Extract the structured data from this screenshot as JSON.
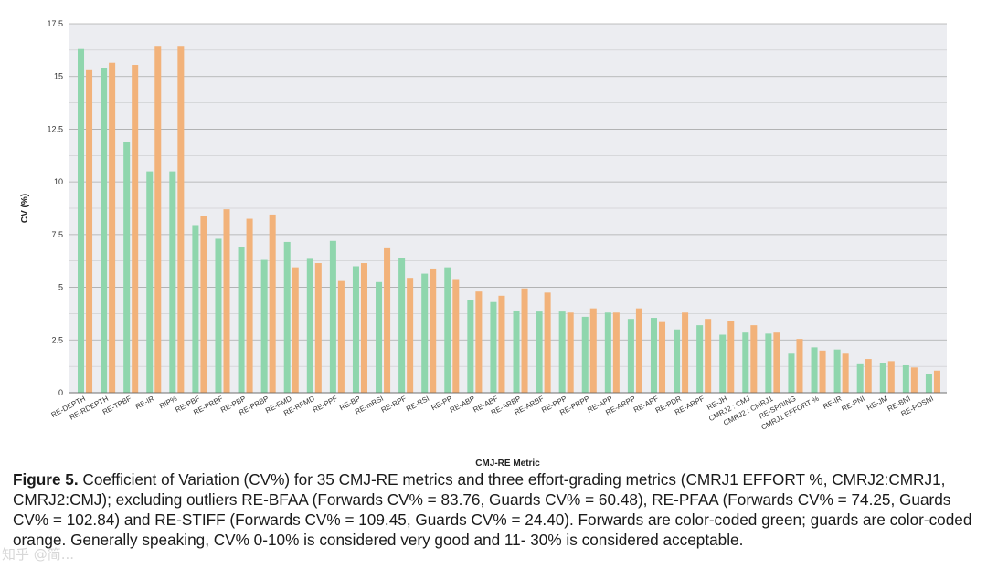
{
  "chart_data": {
    "type": "bar",
    "xlabel": "CMJ-RE Metric",
    "ylabel": "CV (%)",
    "ylim": [
      0,
      17.5
    ],
    "yticks": [
      "0",
      "2.5",
      "5",
      "7.5",
      "10",
      "12.5",
      "15",
      "17.5"
    ],
    "grid": true,
    "legend": "none",
    "colors": {
      "forwards": "#8fd6ad",
      "guards": "#f2b27a",
      "plot_bg": "#ecedf1",
      "grid": "#9a9a9a"
    },
    "categories": [
      "RE-DEPTH",
      "RE-RDEPTH",
      "RE-TPBF",
      "RE-IR",
      "RIP%",
      "RE-PBF",
      "RE-PRBF",
      "RE-PBP",
      "RE-PRBP",
      "RE-FMD",
      "RE-RFMD",
      "RE-PPF",
      "RE-BP",
      "RE-mRSI",
      "RE-RPF",
      "RE-RSI",
      "RE-PP",
      "RE-ABP",
      "RE-ABF",
      "RE-ARBP",
      "RE-ARBF",
      "RE-PPP",
      "RE-PRPP",
      "RE-APP",
      "RE-ARPP",
      "RE-APF",
      "RE-PDR",
      "RE-ARPF",
      "RE-JH",
      "CMRJ2 : CMJ",
      "CMRJ2 : CMRJ1",
      "RE-SPRING",
      "CMRJ1 EFFORT %",
      "RE-IR",
      "RE-PNI",
      "RE-JM",
      "RE-BNI",
      "RE-POSNI"
    ],
    "series": [
      {
        "values": [
          16.3,
          15.4,
          11.9,
          10.5,
          10.5,
          7.95,
          7.3,
          6.9,
          6.3,
          7.15,
          6.35,
          7.2,
          6.0,
          5.25,
          6.4,
          5.65,
          5.95,
          4.4,
          4.3,
          3.9,
          3.85,
          3.85,
          3.6,
          3.8,
          3.5,
          3.55,
          3.0,
          3.2,
          2.75,
          2.85,
          2.8,
          1.85,
          2.15,
          2.05,
          1.35,
          1.4,
          1.3,
          0.9
        ]
      },
      {
        "values": [
          15.3,
          15.65,
          15.55,
          16.45,
          16.45,
          8.4,
          8.7,
          8.25,
          8.45,
          5.95,
          6.15,
          5.3,
          6.15,
          6.85,
          5.45,
          5.85,
          5.35,
          4.8,
          4.6,
          4.95,
          4.75,
          3.8,
          4.0,
          3.8,
          4.0,
          3.35,
          3.8,
          3.5,
          3.4,
          3.2,
          2.85,
          2.55,
          2.0,
          1.85,
          1.6,
          1.5,
          1.2,
          1.05
        ]
      }
    ]
  },
  "caption": {
    "label": "Figure 5.",
    "text": " Coefficient of Variation (CV%) for 35 CMJ-RE metrics and three effort-grading metrics (CMRJ1 EFFORT %, CMRJ2:CMRJ1, CMRJ2:CMJ); excluding outliers RE-BFAA (Forwards CV% = 83.76, Guards CV% = 60.48), RE-PFAA (Forwards CV% = 74.25, Guards CV% =  102.84)  and RE-STIFF (Forwards CV% = 109.45, Guards CV% =  24.40). Forwards are color-coded green; guards are color-coded orange. Generally speaking, CV% 0-10% is considered very good and 11- 30% is considered acceptable."
  },
  "watermark": "知乎 @简..."
}
